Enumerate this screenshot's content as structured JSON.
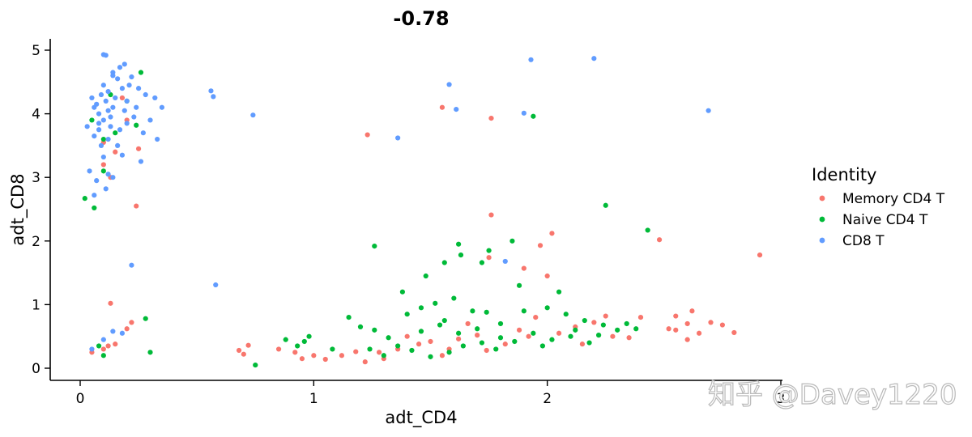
{
  "chart_data": {
    "type": "scatter",
    "title": "-0.78",
    "xlabel": "adt_CD4",
    "ylabel": "adt_CD8",
    "xlim": [
      -0.12,
      3.0
    ],
    "ylim": [
      -0.2,
      5.2
    ],
    "x_ticks": [
      0,
      1,
      2,
      3
    ],
    "y_ticks": [
      0,
      1,
      2,
      3,
      4,
      5
    ],
    "grid": false,
    "legend_position": "right",
    "legend_title": "Identity",
    "series": [
      {
        "name": "Memory CD4 T",
        "color": "#F8766D",
        "points": [
          [
            0.1,
            3.55
          ],
          [
            0.15,
            3.4
          ],
          [
            0.25,
            3.45
          ],
          [
            0.2,
            3.9
          ],
          [
            0.18,
            4.25
          ],
          [
            0.13,
            3.0
          ],
          [
            0.1,
            3.2
          ],
          [
            0.24,
            2.55
          ],
          [
            0.13,
            1.02
          ],
          [
            0.05,
            0.25
          ],
          [
            0.1,
            0.3
          ],
          [
            0.15,
            0.38
          ],
          [
            0.2,
            0.62
          ],
          [
            0.22,
            0.72
          ],
          [
            0.12,
            0.35
          ],
          [
            1.23,
            3.67
          ],
          [
            1.55,
            4.1
          ],
          [
            1.76,
            3.93
          ],
          [
            1.76,
            2.41
          ],
          [
            1.75,
            1.74
          ],
          [
            1.9,
            1.57
          ],
          [
            1.97,
            1.93
          ],
          [
            2.02,
            2.12
          ],
          [
            2.48,
            2.02
          ],
          [
            2.91,
            1.78
          ],
          [
            2.0,
            1.45
          ],
          [
            2.4,
            0.8
          ],
          [
            2.55,
            0.6
          ],
          [
            2.6,
            0.7
          ],
          [
            2.7,
            0.72
          ],
          [
            2.75,
            0.68
          ],
          [
            2.65,
            0.55
          ],
          [
            2.8,
            0.56
          ],
          [
            2.52,
            0.62
          ],
          [
            2.6,
            0.45
          ],
          [
            2.62,
            0.9
          ],
          [
            2.55,
            0.82
          ],
          [
            0.68,
            0.28
          ],
          [
            0.7,
            0.22
          ],
          [
            0.72,
            0.36
          ],
          [
            0.85,
            0.3
          ],
          [
            0.92,
            0.25
          ],
          [
            0.95,
            0.15
          ],
          [
            1.0,
            0.2
          ],
          [
            1.05,
            0.14
          ],
          [
            1.12,
            0.2
          ],
          [
            1.18,
            0.26
          ],
          [
            1.22,
            0.1
          ],
          [
            1.28,
            0.25
          ],
          [
            1.36,
            0.3
          ],
          [
            1.45,
            0.38
          ],
          [
            1.5,
            0.42
          ],
          [
            1.58,
            0.3
          ],
          [
            1.62,
            0.46
          ],
          [
            1.7,
            0.52
          ],
          [
            1.82,
            0.38
          ],
          [
            1.88,
            0.6
          ],
          [
            1.92,
            0.5
          ],
          [
            2.05,
            0.55
          ],
          [
            2.12,
            0.65
          ],
          [
            2.2,
            0.72
          ],
          [
            2.28,
            0.5
          ],
          [
            2.35,
            0.48
          ],
          [
            1.4,
            0.5
          ],
          [
            1.55,
            0.2
          ],
          [
            1.3,
            0.15
          ],
          [
            1.66,
            0.7
          ],
          [
            1.74,
            0.28
          ],
          [
            2.15,
            0.38
          ],
          [
            2.25,
            0.82
          ],
          [
            1.95,
            0.8
          ]
        ]
      },
      {
        "name": "Naive CD4 T",
        "color": "#00BA38",
        "points": [
          [
            0.02,
            2.67
          ],
          [
            0.06,
            2.52
          ],
          [
            0.13,
            4.3
          ],
          [
            0.2,
            4.2
          ],
          [
            0.26,
            4.65
          ],
          [
            0.1,
            3.6
          ],
          [
            0.05,
            3.9
          ],
          [
            0.24,
            3.82
          ],
          [
            0.1,
            3.1
          ],
          [
            0.15,
            3.7
          ],
          [
            0.28,
            0.78
          ],
          [
            0.1,
            0.2
          ],
          [
            0.08,
            0.35
          ],
          [
            1.26,
            1.92
          ],
          [
            1.94,
            3.96
          ],
          [
            1.62,
            1.95
          ],
          [
            2.25,
            2.56
          ],
          [
            2.43,
            2.17
          ],
          [
            1.63,
            1.78
          ],
          [
            1.75,
            1.85
          ],
          [
            1.85,
            2.0
          ],
          [
            1.72,
            1.66
          ],
          [
            1.56,
            1.66
          ],
          [
            1.48,
            1.45
          ],
          [
            1.88,
            1.3
          ],
          [
            2.05,
            1.2
          ],
          [
            1.38,
            1.2
          ],
          [
            0.93,
            0.35
          ],
          [
            0.88,
            0.45
          ],
          [
            0.96,
            0.42
          ],
          [
            1.15,
            0.8
          ],
          [
            1.2,
            0.65
          ],
          [
            1.26,
            0.6
          ],
          [
            1.32,
            0.48
          ],
          [
            1.4,
            0.85
          ],
          [
            1.46,
            0.95
          ],
          [
            1.52,
            1.02
          ],
          [
            1.6,
            1.1
          ],
          [
            1.68,
            0.9
          ],
          [
            1.74,
            0.88
          ],
          [
            1.8,
            0.7
          ],
          [
            1.9,
            0.9
          ],
          [
            2.0,
            0.95
          ],
          [
            2.08,
            0.85
          ],
          [
            2.16,
            0.75
          ],
          [
            2.24,
            0.68
          ],
          [
            2.3,
            0.6
          ],
          [
            2.38,
            0.62
          ],
          [
            1.36,
            0.35
          ],
          [
            1.42,
            0.28
          ],
          [
            1.5,
            0.18
          ],
          [
            1.58,
            0.25
          ],
          [
            1.64,
            0.35
          ],
          [
            1.72,
            0.4
          ],
          [
            1.8,
            0.48
          ],
          [
            1.86,
            0.42
          ],
          [
            1.94,
            0.55
          ],
          [
            2.02,
            0.45
          ],
          [
            2.1,
            0.5
          ],
          [
            2.18,
            0.4
          ],
          [
            1.24,
            0.3
          ],
          [
            1.3,
            0.2
          ],
          [
            1.46,
            0.58
          ],
          [
            1.54,
            0.68
          ],
          [
            1.62,
            0.55
          ],
          [
            1.7,
            0.62
          ],
          [
            1.78,
            0.3
          ],
          [
            1.98,
            0.35
          ],
          [
            2.12,
            0.6
          ],
          [
            2.22,
            0.52
          ],
          [
            2.34,
            0.7
          ],
          [
            1.56,
            0.75
          ],
          [
            0.98,
            0.5
          ],
          [
            1.08,
            0.3
          ],
          [
            0.75,
            0.05
          ],
          [
            0.3,
            0.25
          ]
        ]
      },
      {
        "name": "CD8 T",
        "color": "#619CFF",
        "points": [
          [
            0.1,
            4.93
          ],
          [
            0.11,
            4.92
          ],
          [
            0.17,
            4.73
          ],
          [
            0.19,
            4.78
          ],
          [
            0.14,
            4.65
          ],
          [
            0.22,
            4.58
          ],
          [
            0.06,
            4.1
          ],
          [
            0.08,
            3.75
          ],
          [
            0.12,
            3.6
          ],
          [
            0.16,
            3.5
          ],
          [
            0.2,
            3.85
          ],
          [
            0.24,
            4.1
          ],
          [
            0.28,
            4.3
          ],
          [
            0.32,
            4.25
          ],
          [
            0.3,
            3.9
          ],
          [
            0.33,
            3.6
          ],
          [
            0.26,
            3.25
          ],
          [
            0.1,
            3.32
          ],
          [
            0.12,
            3.05
          ],
          [
            0.14,
            3.0
          ],
          [
            0.04,
            3.1
          ],
          [
            0.07,
            2.95
          ],
          [
            0.11,
            2.82
          ],
          [
            0.06,
            2.72
          ],
          [
            0.09,
            3.5
          ],
          [
            0.18,
            3.35
          ],
          [
            0.03,
            3.8
          ],
          [
            0.35,
            4.1
          ],
          [
            0.56,
            4.36
          ],
          [
            0.57,
            4.27
          ],
          [
            0.74,
            3.98
          ],
          [
            0.22,
            1.62
          ],
          [
            0.58,
            1.31
          ],
          [
            0.14,
            0.58
          ],
          [
            0.18,
            0.55
          ],
          [
            0.1,
            0.45
          ],
          [
            0.05,
            0.3
          ],
          [
            1.58,
            4.46
          ],
          [
            1.61,
            4.07
          ],
          [
            1.36,
            3.62
          ],
          [
            1.93,
            4.85
          ],
          [
            1.9,
            4.01
          ],
          [
            2.2,
            4.87
          ],
          [
            2.69,
            4.05
          ],
          [
            1.82,
            1.68
          ],
          [
            0.08,
            4.0
          ],
          [
            0.12,
            4.05
          ],
          [
            0.1,
            3.9
          ],
          [
            0.14,
            4.1
          ],
          [
            0.11,
            4.2
          ],
          [
            0.13,
            3.95
          ],
          [
            0.09,
            4.3
          ],
          [
            0.15,
            4.25
          ],
          [
            0.18,
            4.4
          ],
          [
            0.21,
            4.45
          ],
          [
            0.16,
            4.55
          ],
          [
            0.07,
            4.15
          ],
          [
            0.12,
            4.35
          ],
          [
            0.19,
            4.05
          ],
          [
            0.23,
            3.95
          ],
          [
            0.08,
            3.85
          ],
          [
            0.1,
            4.45
          ],
          [
            0.14,
            4.6
          ],
          [
            0.06,
            3.65
          ],
          [
            0.17,
            3.75
          ],
          [
            0.2,
            4.2
          ],
          [
            0.25,
            4.4
          ],
          [
            0.27,
            3.7
          ],
          [
            0.05,
            4.25
          ],
          [
            0.13,
            3.8
          ]
        ]
      }
    ]
  },
  "watermark": {
    "text": "知乎 @Davey1220"
  }
}
